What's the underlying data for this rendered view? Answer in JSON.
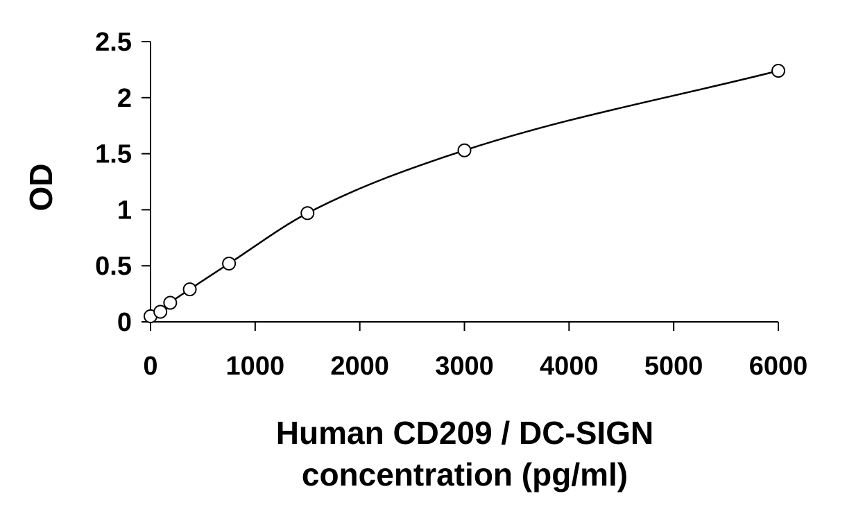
{
  "chart_data": {
    "type": "scatter",
    "ylabel": "OD",
    "xlabel_lines": [
      "Human CD209 / DC-SIGN",
      "concentration (pg/ml)"
    ],
    "xlim": [
      0,
      6000
    ],
    "ylim": [
      0,
      2.5
    ],
    "x_ticks": [
      "0",
      "1000",
      "2000",
      "3000",
      "4000",
      "5000",
      "6000"
    ],
    "y_ticks": [
      "0",
      "0.5",
      "1",
      "1.5",
      "2",
      "2.5"
    ],
    "grid": false,
    "legend": "none",
    "series": [
      {
        "marker": "open-circle",
        "fit": "smooth curve",
        "points": [
          {
            "x": 0,
            "y": 0.05
          },
          {
            "x": 94,
            "y": 0.09
          },
          {
            "x": 188,
            "y": 0.17
          },
          {
            "x": 375,
            "y": 0.29
          },
          {
            "x": 750,
            "y": 0.52
          },
          {
            "x": 1500,
            "y": 0.97
          },
          {
            "x": 3000,
            "y": 1.53
          },
          {
            "x": 6000,
            "y": 2.24
          }
        ]
      }
    ],
    "colors": {
      "line": "#000000",
      "marker_fill": "#ffffff",
      "background": "#ffffff"
    }
  }
}
